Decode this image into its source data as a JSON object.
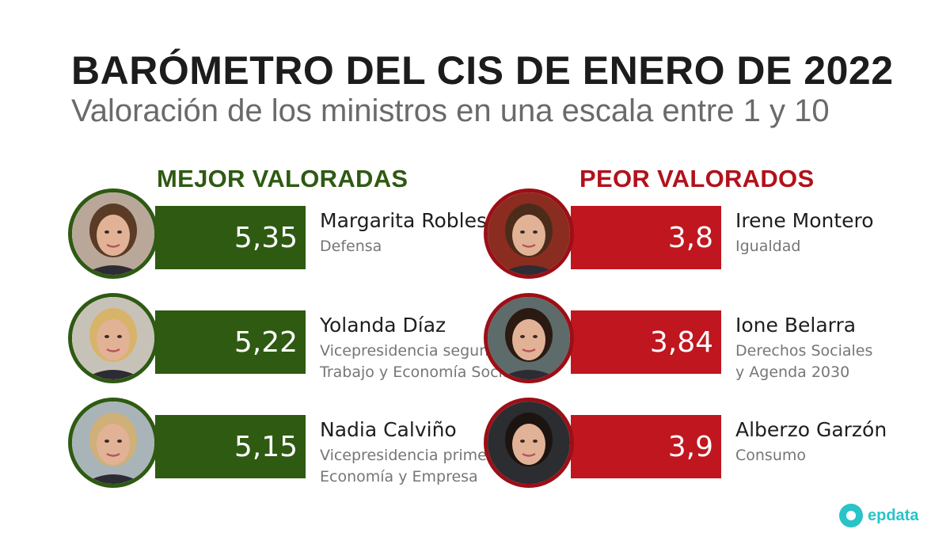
{
  "title": "BARÓMETRO DEL CIS DE ENERO DE 2022",
  "subtitle": "Valoración de los ministros en una escala entre 1 y 10",
  "brand": "epdata",
  "colors": {
    "best": "#2e5a12",
    "worst": "#c0161f",
    "brand": "#29c3c8"
  },
  "chart_data": {
    "type": "table",
    "title": "BARÓMETRO DEL CIS DE ENERO DE 2022",
    "subtitle": "Valoración de los ministros en una escala entre 1 y 10",
    "groups": [
      {
        "label": "MEJOR VALORADAS",
        "items": [
          {
            "score": "5,35",
            "value": 5.35,
            "name": "Margarita Robles",
            "role_lines": [
              "Defensa"
            ],
            "photo": "portrait-photo"
          },
          {
            "score": "5,22",
            "value": 5.22,
            "name": "Yolanda Díaz",
            "role_lines": [
              "Vicepresidencia segunda",
              "Trabajo y Economía Social"
            ],
            "photo": "portrait-photo"
          },
          {
            "score": "5,15",
            "value": 5.15,
            "name": "Nadia Calviño",
            "role_lines": [
              "Vicepresidencia primera",
              "Economía y Empresa"
            ],
            "photo": "portrait-photo"
          }
        ]
      },
      {
        "label": "PEOR VALORADOS",
        "items": [
          {
            "score": "3,8",
            "value": 3.8,
            "name": "Irene Montero",
            "role_lines": [
              "Igualdad"
            ],
            "photo": "portrait-photo"
          },
          {
            "score": "3,84",
            "value": 3.84,
            "name": "Ione Belarra",
            "role_lines": [
              "Derechos Sociales",
              "y Agenda 2030"
            ],
            "photo": "portrait-photo"
          },
          {
            "score": "3,9",
            "value": 3.9,
            "name": "Alberzo Garzón",
            "role_lines": [
              "Consumo"
            ],
            "photo": "portrait-photo"
          }
        ]
      }
    ]
  }
}
